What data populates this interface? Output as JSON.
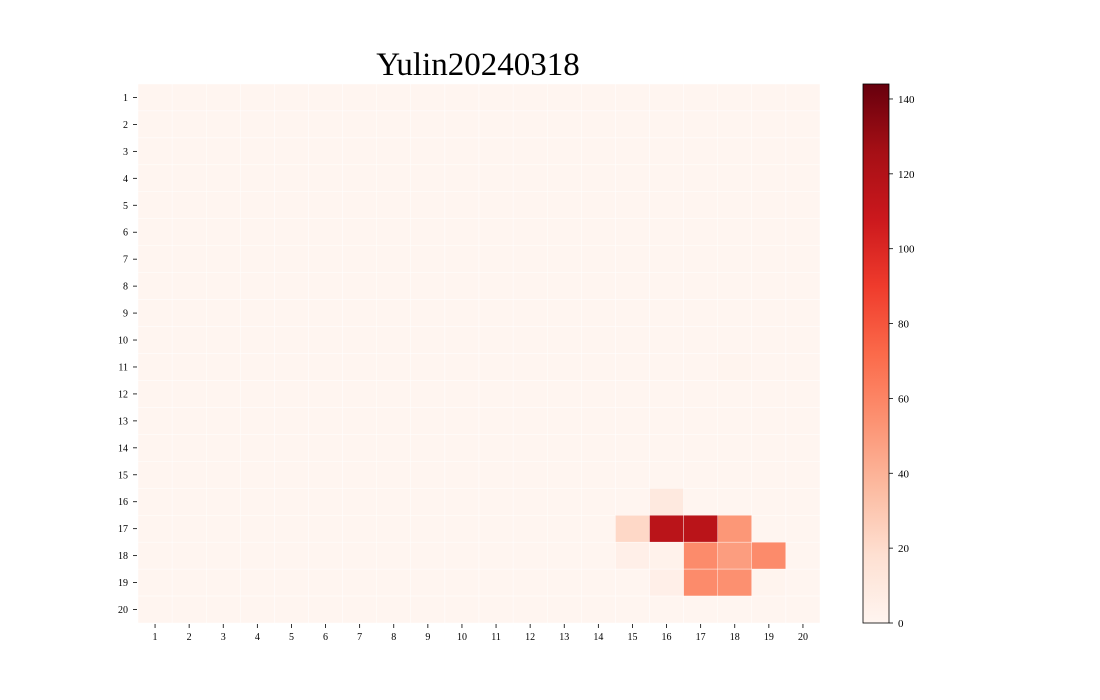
{
  "chart_data": {
    "type": "heatmap",
    "title": "Yulin20240318",
    "colormap": "Reds",
    "x_labels": [
      "1",
      "2",
      "3",
      "4",
      "5",
      "6",
      "7",
      "8",
      "9",
      "10",
      "11",
      "12",
      "13",
      "14",
      "15",
      "16",
      "17",
      "18",
      "19",
      "20"
    ],
    "y_labels": [
      "1",
      "2",
      "3",
      "4",
      "5",
      "6",
      "7",
      "8",
      "9",
      "10",
      "11",
      "12",
      "13",
      "14",
      "15",
      "16",
      "17",
      "18",
      "19",
      "20"
    ],
    "values": [
      [
        0,
        0,
        0,
        0,
        0,
        0,
        0,
        0,
        0,
        0,
        0,
        0,
        0,
        0,
        0,
        0,
        0,
        0,
        0,
        0
      ],
      [
        0,
        0,
        0,
        0,
        0,
        0,
        0,
        0,
        0,
        0,
        0,
        0,
        0,
        0,
        0,
        0,
        0,
        0,
        0,
        0
      ],
      [
        0,
        0,
        0,
        0,
        0,
        0,
        0,
        0,
        0,
        0,
        0,
        0,
        0,
        0,
        0,
        0,
        0,
        0,
        0,
        0
      ],
      [
        0,
        0,
        0,
        0,
        0,
        0,
        0,
        0,
        0,
        0,
        0,
        0,
        0,
        0,
        0,
        0,
        0,
        0,
        0,
        0
      ],
      [
        0,
        0,
        0,
        0,
        0,
        0,
        0,
        0,
        0,
        0,
        0,
        0,
        0,
        0,
        0,
        0,
        0,
        0,
        0,
        0
      ],
      [
        0,
        0,
        0,
        0,
        0,
        0,
        0,
        0,
        0,
        0,
        0,
        0,
        0,
        0,
        0,
        0,
        0,
        0,
        0,
        0
      ],
      [
        0,
        0,
        0,
        0,
        0,
        0,
        0,
        0,
        0,
        0,
        0,
        0,
        0,
        0,
        0,
        0,
        0,
        0,
        0,
        0
      ],
      [
        0,
        0,
        0,
        0,
        0,
        0,
        0,
        0,
        0,
        0,
        0,
        0,
        0,
        0,
        0,
        0,
        0,
        0,
        0,
        0
      ],
      [
        0,
        0,
        0,
        0,
        0,
        0,
        0,
        0,
        0,
        0,
        0,
        0,
        0,
        0,
        0,
        0,
        0,
        0,
        0,
        0
      ],
      [
        0,
        0,
        0,
        0,
        0,
        0,
        0,
        0,
        0,
        0,
        0,
        0,
        0,
        0,
        0,
        0,
        0,
        0,
        0,
        0
      ],
      [
        0,
        0,
        0,
        0,
        0,
        0,
        0,
        0,
        0,
        0,
        0,
        0,
        0,
        0,
        0,
        0,
        0,
        1,
        0,
        0
      ],
      [
        0,
        0,
        0,
        0,
        0,
        0,
        0,
        0,
        0,
        0,
        0,
        0,
        0,
        0,
        0,
        0,
        0,
        0,
        0,
        0
      ],
      [
        0,
        0,
        0,
        0,
        0,
        0,
        0,
        0,
        0,
        0,
        0,
        0,
        0,
        0,
        0,
        0,
        0,
        0,
        0,
        0
      ],
      [
        0,
        0,
        0,
        0,
        0,
        0,
        0,
        0,
        0,
        0,
        0,
        0,
        0,
        0,
        0,
        0,
        0,
        0,
        0,
        0
      ],
      [
        0,
        0,
        0,
        0,
        0,
        0,
        0,
        0,
        0,
        0,
        0,
        0,
        0,
        0,
        0,
        0,
        0,
        0,
        0,
        0
      ],
      [
        0,
        0,
        0,
        0,
        0,
        0,
        0,
        0,
        0,
        0,
        0,
        0,
        0,
        0,
        0,
        10,
        0,
        0,
        0,
        0
      ],
      [
        0,
        0,
        0,
        0,
        0,
        0,
        0,
        0,
        0,
        0,
        0,
        0,
        0,
        0,
        22,
        116,
        116,
        52,
        0,
        0
      ],
      [
        0,
        0,
        0,
        0,
        0,
        0,
        0,
        0,
        0,
        0,
        0,
        0,
        0,
        0,
        5,
        3,
        57,
        49,
        57,
        0
      ],
      [
        0,
        0,
        0,
        0,
        0,
        0,
        0,
        0,
        0,
        0,
        0,
        0,
        0,
        0,
        0,
        5,
        57,
        55,
        1,
        0
      ],
      [
        0,
        0,
        0,
        0,
        0,
        0,
        0,
        0,
        0,
        0,
        0,
        0,
        0,
        0,
        0,
        0,
        0,
        0,
        0,
        0
      ]
    ],
    "vmin": 0,
    "vmax": 144,
    "colorbar_ticks": [
      0,
      20,
      40,
      60,
      80,
      100,
      120,
      140
    ]
  }
}
